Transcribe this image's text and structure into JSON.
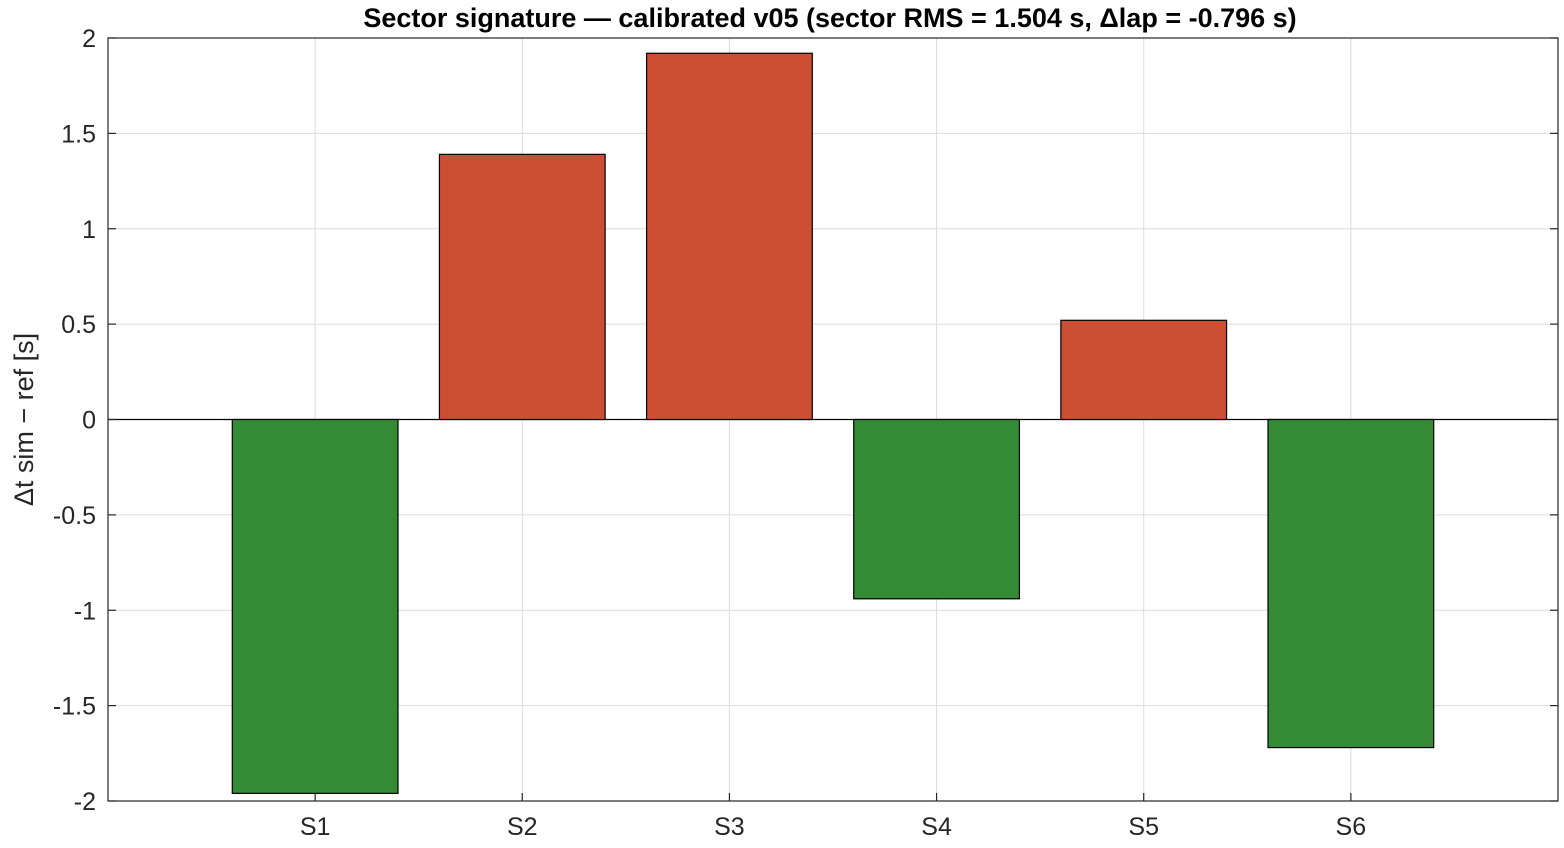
{
  "chart_data": {
    "type": "bar",
    "title": "Sector signature — calibrated v05 (sector RMS = 1.504 s, Δlap = -0.796 s)",
    "xlabel": "",
    "ylabel": "Δt sim − ref [s]",
    "categories": [
      "S1",
      "S2",
      "S3",
      "S4",
      "S5",
      "S6"
    ],
    "values": [
      -1.96,
      1.39,
      1.92,
      -0.94,
      0.52,
      -1.72
    ],
    "ylim": [
      -2,
      2
    ],
    "yticks": [
      -2,
      -1.5,
      -1,
      -0.5,
      0,
      0.5,
      1,
      1.5,
      2
    ],
    "ytick_labels": [
      "-2",
      "-1.5",
      "-1",
      "-0.5",
      "0",
      "0.5",
      "1",
      "1.5",
      "2"
    ],
    "grid": true,
    "colors": {
      "positive": "#cc4e33",
      "negative": "#348a35",
      "edge": "#000000",
      "grid": "#dcdcdc",
      "zero_line": "#000000"
    }
  }
}
